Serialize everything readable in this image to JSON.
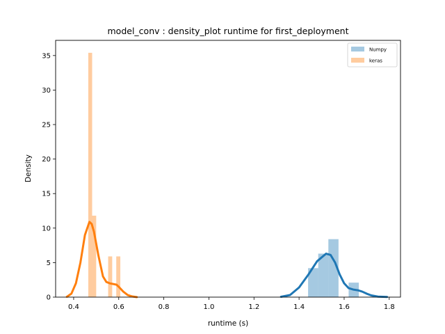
{
  "chart_data": {
    "type": "bar",
    "title": "model_conv : density_plot runtime  for first_deployment",
    "xlabel": "runtime (s)",
    "ylabel": "Density",
    "xlim": [
      0.32,
      1.85
    ],
    "ylim": [
      0,
      37.2
    ],
    "xticks": [
      0.4,
      0.6,
      0.8,
      1.0,
      1.2,
      1.4,
      1.6,
      1.8
    ],
    "xtick_labels": [
      "0.4",
      "0.6",
      "0.8",
      "1.0",
      "1.2",
      "1.4",
      "1.6",
      "1.8"
    ],
    "yticks": [
      0,
      5,
      10,
      15,
      20,
      25,
      30,
      35
    ],
    "ytick_labels": [
      "0",
      "5",
      "10",
      "15",
      "20",
      "25",
      "30",
      "35"
    ],
    "grid": false,
    "legend_position": "top-right",
    "series": [
      {
        "name": "Numpy",
        "color": "#1f77b4",
        "hist": [
          {
            "x0": 1.44,
            "x1": 1.485,
            "h": 4.2
          },
          {
            "x0": 1.485,
            "x1": 1.53,
            "h": 6.3
          },
          {
            "x0": 1.53,
            "x1": 1.575,
            "h": 8.4
          },
          {
            "x0": 1.62,
            "x1": 1.665,
            "h": 2.1
          }
        ],
        "kde_x": [
          1.32,
          1.36,
          1.4,
          1.44,
          1.48,
          1.52,
          1.54,
          1.56,
          1.58,
          1.6,
          1.62,
          1.64,
          1.66,
          1.68,
          1.7,
          1.72,
          1.75,
          1.79
        ],
        "kde_y": [
          0.05,
          0.3,
          1.4,
          3.2,
          5.2,
          6.3,
          6.1,
          5.0,
          3.3,
          2.0,
          1.3,
          1.1,
          1.0,
          0.8,
          0.5,
          0.25,
          0.08,
          0.02
        ]
      },
      {
        "name": "keras",
        "color": "#ff7f0e",
        "hist": [
          {
            "x0": 0.465,
            "x1": 0.482,
            "h": 35.4
          },
          {
            "x0": 0.482,
            "x1": 0.5,
            "h": 11.8
          },
          {
            "x0": 0.553,
            "x1": 0.571,
            "h": 5.9
          },
          {
            "x0": 0.589,
            "x1": 0.607,
            "h": 5.9
          }
        ],
        "kde_x": [
          0.37,
          0.39,
          0.41,
          0.43,
          0.45,
          0.47,
          0.48,
          0.49,
          0.51,
          0.53,
          0.545,
          0.56,
          0.575,
          0.59,
          0.6,
          0.62,
          0.64,
          0.66,
          0.68
        ],
        "kde_y": [
          0.05,
          0.5,
          2.0,
          5.0,
          9.0,
          10.9,
          10.6,
          9.5,
          6.0,
          3.0,
          2.2,
          2.0,
          1.9,
          1.8,
          1.5,
          0.8,
          0.3,
          0.1,
          0.0
        ]
      }
    ]
  }
}
